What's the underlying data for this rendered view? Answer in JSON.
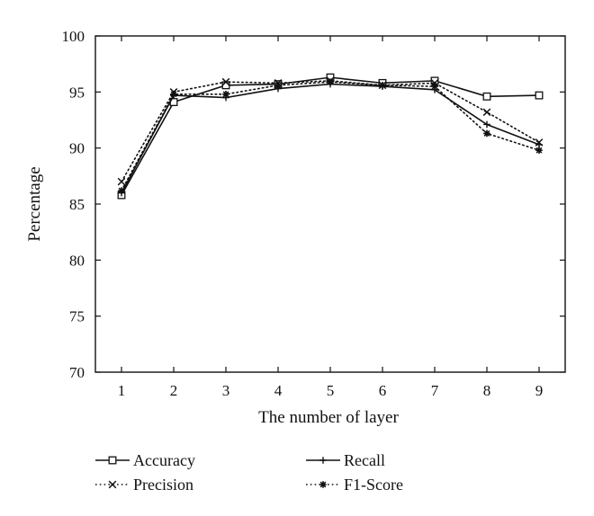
{
  "chart_data": {
    "type": "line",
    "title": "",
    "xlabel": "The number of layer",
    "ylabel": "Percentage",
    "x": [
      1,
      2,
      3,
      4,
      5,
      6,
      7,
      8,
      9
    ],
    "xlim": [
      0.5,
      9.5
    ],
    "ylim": [
      70,
      100
    ],
    "yticks": [
      70,
      75,
      80,
      85,
      90,
      95,
      100
    ],
    "grid": false,
    "legend_position": "bottom",
    "series": [
      {
        "name": "Accuracy",
        "line_style": "solid",
        "marker": "square",
        "values": [
          85.8,
          94.1,
          95.6,
          95.7,
          96.3,
          95.8,
          96.0,
          94.6,
          94.7
        ]
      },
      {
        "name": "Precision",
        "line_style": "dotted",
        "marker": "x",
        "values": [
          87.0,
          95.0,
          95.9,
          95.8,
          96.0,
          95.6,
          95.8,
          93.2,
          90.5
        ]
      },
      {
        "name": "Recall",
        "line_style": "solid",
        "marker": "plus",
        "values": [
          86.0,
          94.7,
          94.5,
          95.3,
          95.7,
          95.5,
          95.2,
          92.1,
          90.3
        ]
      },
      {
        "name": "F1-Score",
        "line_style": "dotted",
        "marker": "star",
        "values": [
          86.2,
          94.8,
          94.8,
          95.6,
          95.9,
          95.6,
          95.5,
          91.3,
          89.8
        ]
      }
    ]
  }
}
